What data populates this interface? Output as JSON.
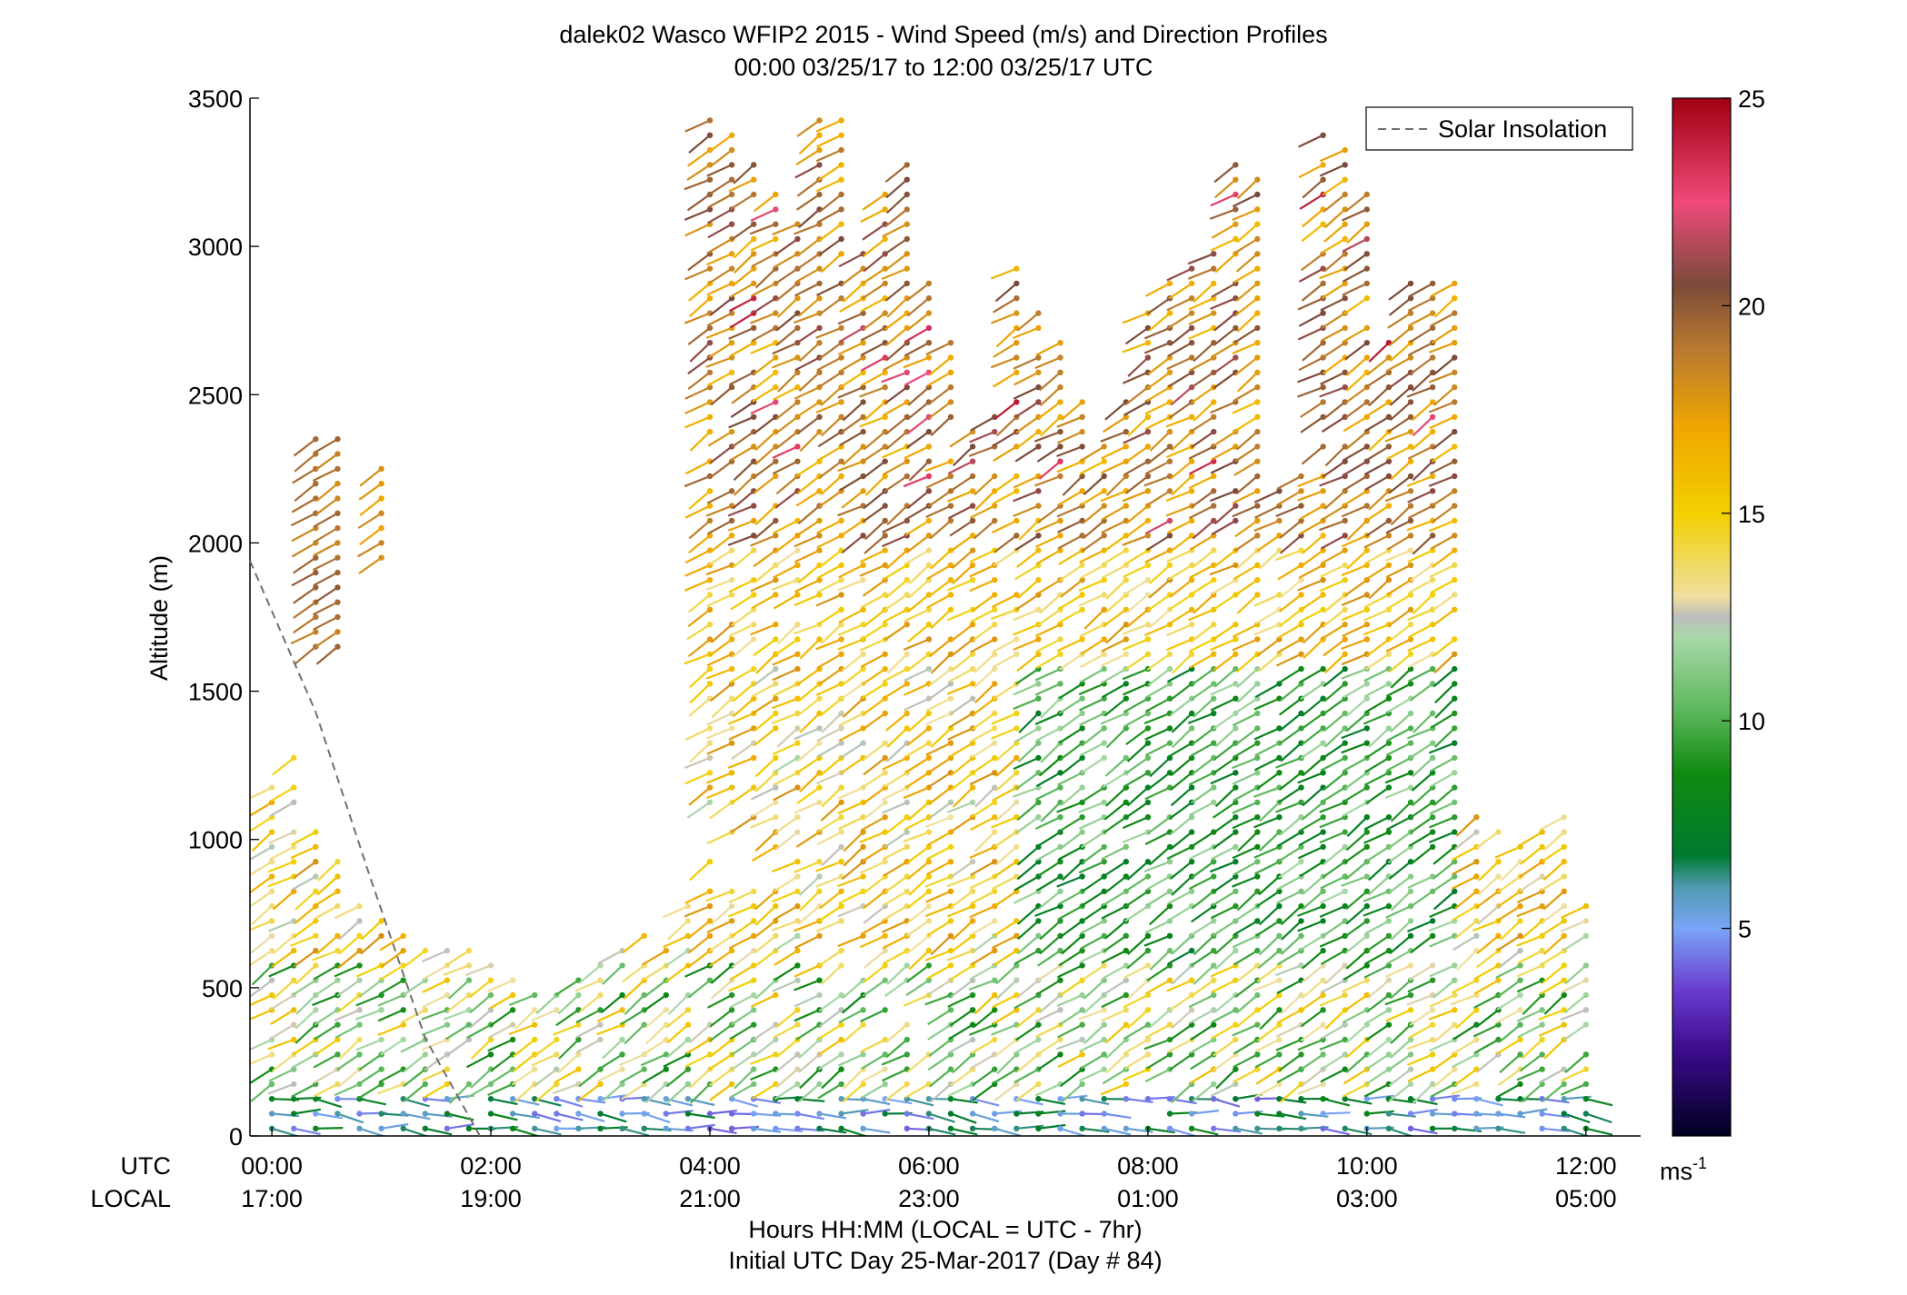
{
  "chart_data": {
    "type": "scatter",
    "title": "dalek02 Wasco WFIP2 2015 - Wind Speed (m/s) and Direction Profiles",
    "subtitle": "00:00 03/25/17 to 12:00 03/25/17  UTC",
    "xlabel": "Hours HH:MM  (LOCAL = UTC - 7hr)",
    "xlabel2": "Initial UTC Day 25-Mar-2017 (Day # 84)",
    "ylabel": "Altitude (m)",
    "xlim": [
      -0.2,
      12.5
    ],
    "ylim": [
      0,
      3500
    ],
    "y_ticks": [
      0,
      500,
      1000,
      1500,
      2000,
      2500,
      3000,
      3500
    ],
    "x_ticks": [
      0,
      2,
      4,
      6,
      8,
      10,
      12
    ],
    "x_row_labels": {
      "utc": "UTC",
      "local": "LOCAL"
    },
    "x_tick_labels_utc": [
      "00:00",
      "02:00",
      "04:00",
      "06:00",
      "08:00",
      "10:00",
      "12:00"
    ],
    "x_tick_labels_local": [
      "17:00",
      "19:00",
      "21:00",
      "23:00",
      "01:00",
      "03:00",
      "05:00"
    ],
    "legend": {
      "entries": [
        "Solar Insolation"
      ],
      "placement": "top-right",
      "line_color": "#707070"
    },
    "colorbar": {
      "ticks": [
        5,
        10,
        15,
        20,
        25
      ],
      "range": [
        0,
        25
      ],
      "unit_label": "ms",
      "unit_exponent": "-1"
    },
    "solar_insolation": {
      "x": [
        -0.2,
        0.4,
        0.9,
        1.4,
        1.9
      ],
      "y": [
        1940,
        1430,
        870,
        330,
        0
      ]
    },
    "profile_times_hours": [
      0.0,
      0.2,
      0.4,
      0.6,
      0.8,
      1.0,
      1.2,
      1.4,
      1.6,
      1.8,
      2.0,
      2.2,
      2.4,
      2.6,
      2.8,
      3.0,
      3.2,
      3.4,
      3.6,
      3.8,
      4.0,
      4.2,
      4.4,
      4.6,
      4.8,
      5.0,
      5.2,
      5.4,
      5.6,
      5.8,
      6.0,
      6.2,
      6.4,
      6.6,
      6.8,
      7.0,
      7.2,
      7.4,
      7.6,
      7.8,
      8.0,
      8.2,
      8.4,
      8.6,
      8.8,
      9.0,
      9.2,
      9.4,
      9.6,
      9.8,
      10.0,
      10.2,
      10.4,
      10.6,
      10.8,
      11.0,
      11.2,
      11.4,
      11.6,
      11.8,
      12.0
    ],
    "gate_spacing_m": 50,
    "note_values": "wind barbs: altitude coverage per profile",
    "profile_coverage_m": [
      [
        0,
        1200
      ],
      [
        0,
        1300
      ],
      [
        0,
        1050
      ],
      [
        0,
        950
      ],
      [
        0,
        850
      ],
      [
        0,
        800
      ],
      [
        0,
        700
      ],
      [
        0,
        650
      ],
      [
        0,
        700
      ],
      [
        0,
        650
      ],
      [
        0,
        600
      ],
      [
        0,
        550
      ],
      [
        0,
        500
      ],
      [
        0,
        500
      ],
      [
        0,
        550
      ],
      [
        0,
        600
      ],
      [
        0,
        650
      ],
      [
        0,
        700
      ],
      [
        0,
        650
      ],
      [
        0,
        800
      ],
      [
        0,
        3450
      ],
      [
        0,
        3400
      ],
      [
        0,
        3350
      ],
      [
        0,
        3200
      ],
      [
        0,
        3100
      ],
      [
        0,
        3450
      ],
      [
        0,
        3450
      ],
      [
        0,
        3000
      ],
      [
        0,
        3200
      ],
      [
        0,
        3300
      ],
      [
        0,
        2900
      ],
      [
        0,
        2700
      ],
      [
        0,
        2400
      ],
      [
        0,
        2500
      ],
      [
        0,
        2950
      ],
      [
        0,
        2800
      ],
      [
        0,
        2700
      ],
      [
        0,
        2500
      ],
      [
        0,
        2350
      ],
      [
        0,
        2500
      ],
      [
        0,
        2800
      ],
      [
        0,
        2900
      ],
      [
        0,
        2950
      ],
      [
        0,
        3000
      ],
      [
        0,
        3300
      ],
      [
        0,
        3250
      ],
      [
        0,
        2200
      ],
      [
        0,
        2250
      ],
      [
        0,
        3400
      ],
      [
        0,
        3350
      ],
      [
        0,
        3200
      ],
      [
        0,
        2700
      ],
      [
        0,
        2900
      ],
      [
        0,
        2950
      ],
      [
        0,
        2900
      ],
      [
        0,
        1100
      ],
      [
        0,
        1050
      ],
      [
        0,
        1000
      ],
      [
        0,
        1050
      ],
      [
        0,
        1100
      ],
      [
        0,
        800
      ]
    ],
    "upper_isolated_profiles": [
      {
        "x": 0.4,
        "y": [
          1650,
          2350
        ],
        "speed": 18
      },
      {
        "x": 0.6,
        "y": [
          1650,
          2350
        ],
        "speed": 18
      },
      {
        "x": 1.0,
        "y": [
          1950,
          2250
        ],
        "speed": 17
      }
    ]
  }
}
